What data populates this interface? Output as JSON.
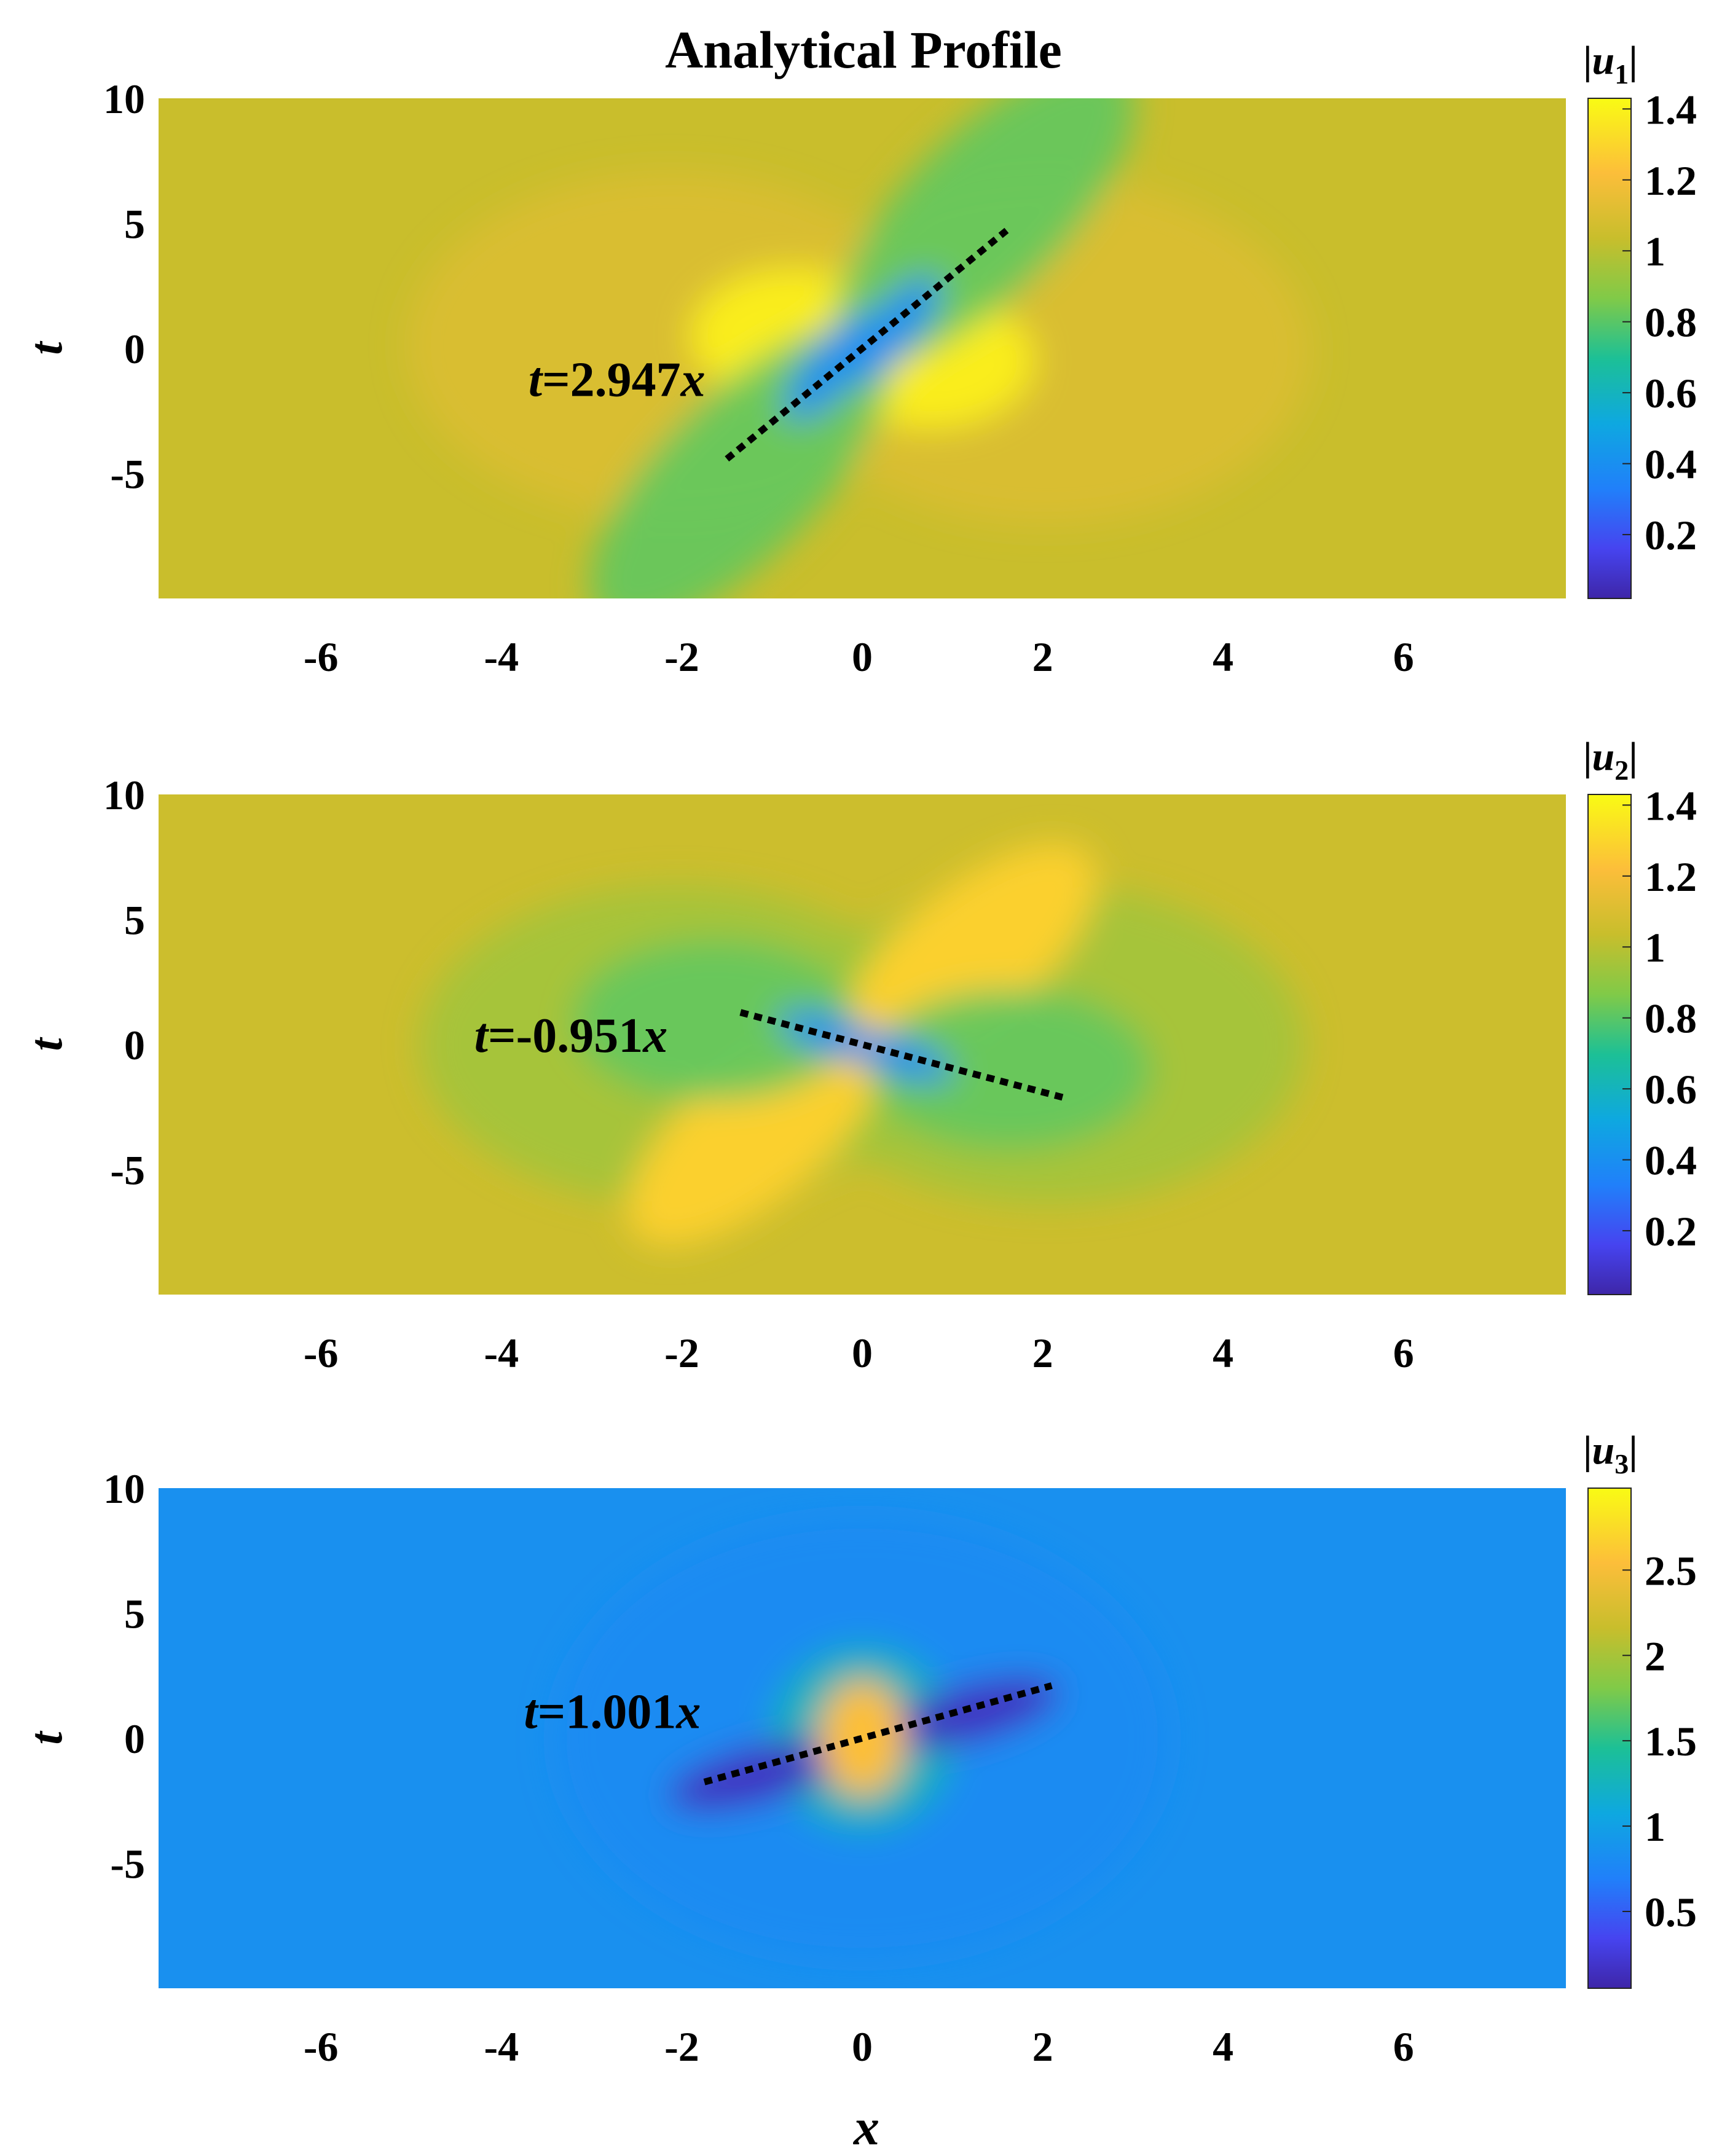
{
  "title": "Analytical Profile",
  "xlabel": "x",
  "colors": {
    "background": "#ffffff",
    "text": "#000000",
    "dashed_line": "#000000"
  },
  "chart_data": [
    {
      "type": "heatmap",
      "colormap": "parula",
      "xlim": [
        -7.8,
        7.8
      ],
      "ylim": [
        -10,
        10
      ],
      "xticks": [
        -6,
        -4,
        -2,
        0,
        2,
        4,
        6
      ],
      "yticks": [
        10,
        5,
        0,
        -5
      ],
      "ylabel": "t",
      "colorbar": {
        "label_var": "u",
        "label_sub": "1",
        "range": [
          0.02,
          1.43
        ],
        "ticks": [
          1.4,
          1.2,
          1,
          0.8,
          0.6,
          0.4,
          0.2
        ]
      },
      "annotation": {
        "text_var": "t",
        "text_rest": "=2.947",
        "text_tail": "x",
        "anchor": [
          -3.7,
          -1.9
        ]
      },
      "line": {
        "slope": 2.947,
        "x": [
          -1.5,
          1.6
        ]
      },
      "background_value": 1.04
    },
    {
      "type": "heatmap",
      "colormap": "parula",
      "xlim": [
        -7.8,
        7.8
      ],
      "ylim": [
        -10,
        10
      ],
      "xticks": [
        -6,
        -4,
        -2,
        0,
        2,
        4,
        6
      ],
      "yticks": [
        10,
        5,
        0,
        -5
      ],
      "ylabel": "t",
      "colorbar": {
        "label_var": "u",
        "label_sub": "2",
        "range": [
          0.02,
          1.43
        ],
        "ticks": [
          1.4,
          1.2,
          1,
          0.8,
          0.6,
          0.4,
          0.2
        ]
      },
      "annotation": {
        "text_var": "t",
        "text_rest": "=-0.951",
        "text_tail": "x",
        "anchor": [
          -4.3,
          -0.3
        ]
      },
      "line": {
        "slope": -0.951,
        "x": [
          -1.35,
          2.25
        ]
      },
      "background_value": 1.05
    },
    {
      "type": "heatmap",
      "colormap": "parula",
      "xlim": [
        -7.8,
        7.8
      ],
      "ylim": [
        -10,
        10
      ],
      "xticks": [
        -6,
        -4,
        -2,
        0,
        2,
        4,
        6
      ],
      "yticks": [
        10,
        5,
        0,
        -5
      ],
      "ylabel": "t",
      "colorbar": {
        "label_var": "u",
        "label_sub": "3",
        "range": [
          0.05,
          2.98
        ],
        "ticks": [
          2.5,
          2,
          1.5,
          1,
          0.5
        ]
      },
      "annotation": {
        "text_var": "t",
        "text_rest": "=1.001",
        "text_tail": "x",
        "anchor": [
          -3.75,
          0.4
        ]
      },
      "line": {
        "slope": 1.001,
        "x": [
          -1.75,
          2.1
        ]
      },
      "background_value": 0.85
    }
  ]
}
